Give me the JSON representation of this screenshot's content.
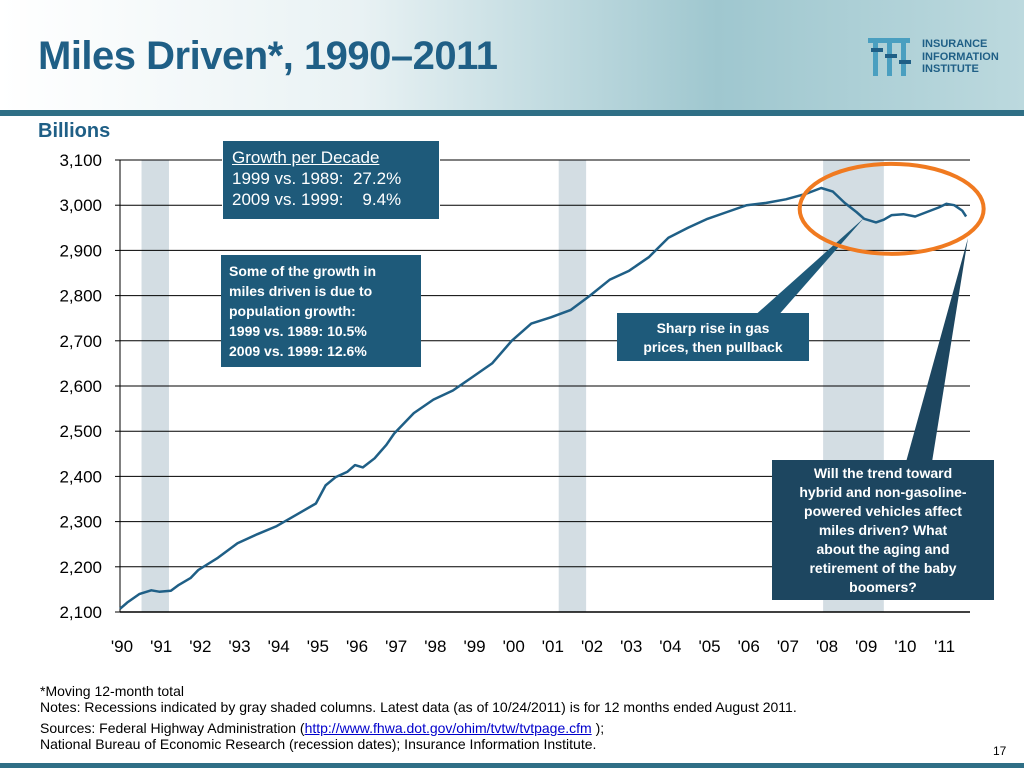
{
  "header": {
    "title": "Miles Driven*, 1990–2011"
  },
  "logo": {
    "line1": "INSURANCE",
    "line2": "INFORMATION",
    "line3": "INSTITUTE"
  },
  "chart_data": {
    "type": "line",
    "ylabel": "Billions",
    "ylim": [
      2100,
      3100
    ],
    "yticks": [
      "2,100",
      "2,200",
      "2,300",
      "2,400",
      "2,500",
      "2,600",
      "2,700",
      "2,800",
      "2,900",
      "3,000",
      "3,100"
    ],
    "categories": [
      "'90",
      "'91",
      "'92",
      "'93",
      "'94",
      "'95",
      "'96",
      "'97",
      "'98",
      "'99",
      "'00",
      "'01",
      "'02",
      "'03",
      "'04",
      "'05",
      "'06",
      "'07",
      "'08",
      "'09",
      "'10",
      "'11"
    ],
    "grid": "horizontal",
    "recessions": [
      [
        1990.55,
        1991.25
      ],
      [
        2001.2,
        2001.9
      ],
      [
        2007.95,
        2009.5
      ]
    ],
    "series": [
      {
        "color": "#1f5f86",
        "x": [
          1990.0,
          1990.2,
          1990.5,
          1990.8,
          1991.0,
          1991.3,
          1991.5,
          1991.8,
          1992.0,
          1992.5,
          1993.0,
          1993.5,
          1994.0,
          1994.5,
          1995.0,
          1995.25,
          1995.5,
          1995.8,
          1996.0,
          1996.2,
          1996.5,
          1996.8,
          1997.0,
          1997.5,
          1998.0,
          1998.5,
          1999.0,
          1999.5,
          2000.0,
          2000.5,
          2001.0,
          2001.5,
          2002.0,
          2002.5,
          2003.0,
          2003.5,
          2004.0,
          2004.5,
          2005.0,
          2005.5,
          2006.0,
          2006.5,
          2007.0,
          2007.5,
          2007.9,
          2008.2,
          2008.5,
          2008.8,
          2009.0,
          2009.3,
          2009.5,
          2009.7,
          2010.0,
          2010.3,
          2010.6,
          2010.9,
          2011.1,
          2011.3,
          2011.5,
          2011.6
        ],
        "y": [
          2107,
          2122,
          2140,
          2148,
          2145,
          2147,
          2160,
          2175,
          2193,
          2220,
          2252,
          2272,
          2290,
          2315,
          2340,
          2380,
          2398,
          2410,
          2425,
          2420,
          2440,
          2470,
          2495,
          2540,
          2570,
          2590,
          2620,
          2650,
          2700,
          2738,
          2752,
          2768,
          2800,
          2835,
          2855,
          2885,
          2928,
          2950,
          2970,
          2985,
          3000,
          3005,
          3013,
          3025,
          3038,
          3030,
          3005,
          2985,
          2970,
          2962,
          2968,
          2978,
          2980,
          2975,
          2985,
          2995,
          3003,
          3000,
          2988,
          2975
        ]
      }
    ],
    "annotations": {
      "growth_box": {
        "title": "Growth per Decade",
        "line1": "1999 vs. 1989:  27.2%",
        "line2": "2009 vs. 1999:    9.4%"
      },
      "population_box": {
        "line1": "Some of the growth in",
        "line2": "miles driven is due to",
        "line3": "population growth:",
        "line4": "1999 vs. 1989:  10.5%",
        "line5": "2009 vs. 1999:  12.6%"
      },
      "gas_box": {
        "line1": "Sharp rise in gas",
        "line2": "prices, then pullback"
      },
      "hybrid_box": {
        "line1": "Will the trend toward",
        "line2": "hybrid and non-gasoline-",
        "line3": "powered vehicles affect",
        "line4": "miles driven? What",
        "line5": "about the aging and",
        "line6": "retirement of the baby",
        "line7": "boomers?"
      }
    },
    "highlight_color": "#f07a20"
  },
  "notes": {
    "line1": "*Moving 12-month total",
    "line2": "Notes: Recessions indicated by gray shaded columns. Latest data (as of 10/24/2011) is for 12 months ended August 2011.",
    "sources_prefix": "Sources:  Federal Highway Administration (",
    "sources_link": "http://www.fhwa.dot.gov/ohim/tvtw/tvtpage.cfm",
    "sources_suffix": " );",
    "line4": "National Bureau of Economic Research (recession dates); Insurance Information Institute."
  },
  "page_number": "17"
}
